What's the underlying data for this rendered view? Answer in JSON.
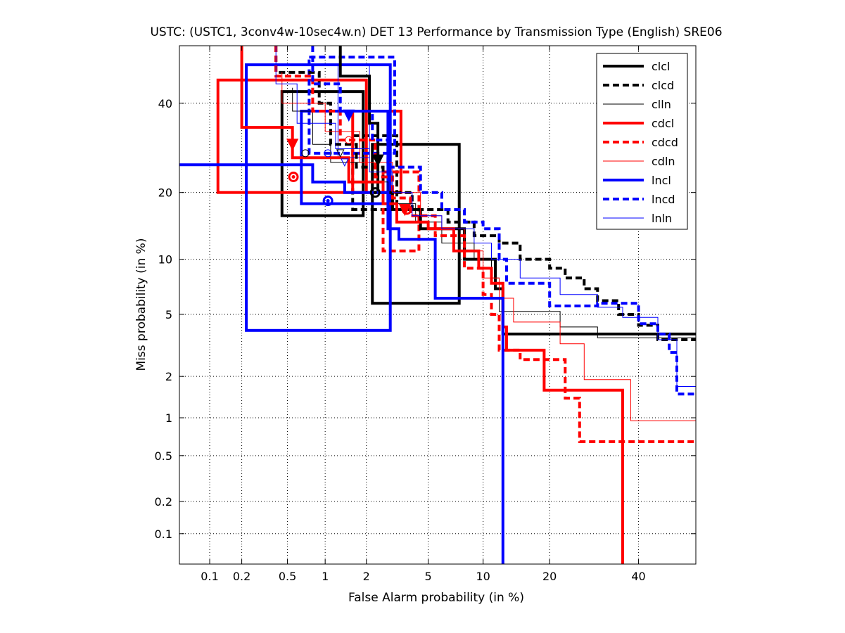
{
  "chart_data": {
    "type": "line",
    "title": "USTC: (USTC1, 3conv4w-10sec4w.n) DET 13 Performance by Transmission Type (English) SRE06",
    "xlabel": "False Alarm probability (in %)",
    "ylabel": "Miss probability (in %)",
    "xscale": "probit",
    "yscale": "probit",
    "xlim": [
      0.05,
      55
    ],
    "ylim": [
      0.05,
      55
    ],
    "xticks": [
      0.1,
      0.2,
      0.5,
      1,
      2,
      5,
      10,
      20,
      40
    ],
    "xtick_labels": [
      "0.1",
      "0.2",
      "0.5",
      "1",
      "2",
      "5",
      "10",
      "20",
      "40"
    ],
    "yticks": [
      0.1,
      0.2,
      0.5,
      1,
      2,
      5,
      10,
      20,
      40
    ],
    "ytick_labels": [
      "0.1",
      "0.2",
      "0.5",
      "1",
      "2",
      "5",
      "10",
      "20",
      "40"
    ],
    "grid": true,
    "legend_position": "top-right",
    "series": [
      {
        "name": "clcl",
        "color": "#000000",
        "style": "solid",
        "weight": "thick",
        "points": [
          [
            1.3,
            55
          ],
          [
            1.3,
            47
          ],
          [
            2.1,
            47
          ],
          [
            2.1,
            35
          ],
          [
            2.4,
            35
          ],
          [
            2.4,
            20
          ],
          [
            3.0,
            20
          ],
          [
            3.0,
            17
          ],
          [
            4.5,
            17
          ],
          [
            4.5,
            14
          ],
          [
            8.0,
            14
          ],
          [
            8.0,
            10
          ],
          [
            11.5,
            10
          ],
          [
            11.5,
            7
          ],
          [
            12.5,
            7
          ],
          [
            12.5,
            3.8
          ],
          [
            55,
            3.8
          ]
        ],
        "det_point": [
          2.3,
          20
        ],
        "min_dcf_point": [
          2.4,
          26.5
        ],
        "boxes": [
          [
            0.45,
            1.9,
            16,
            43
          ],
          [
            2.2,
            7.5,
            5.8,
            30
          ]
        ]
      },
      {
        "name": "clcd",
        "color": "#000000",
        "style": "dashed",
        "weight": "thick",
        "points": [
          [
            0.4,
            55
          ],
          [
            0.4,
            48
          ],
          [
            0.9,
            48
          ],
          [
            0.9,
            40
          ],
          [
            1.1,
            40
          ],
          [
            1.1,
            30
          ],
          [
            1.7,
            30
          ],
          [
            1.7,
            25
          ],
          [
            2.6,
            25
          ],
          [
            2.6,
            20
          ],
          [
            4.0,
            20
          ],
          [
            4.0,
            17
          ],
          [
            6.5,
            17
          ],
          [
            6.5,
            15
          ],
          [
            9.0,
            15
          ],
          [
            9.0,
            13
          ],
          [
            12,
            13
          ],
          [
            12,
            12
          ],
          [
            15,
            12
          ],
          [
            15,
            10
          ],
          [
            20,
            10
          ],
          [
            20,
            9
          ],
          [
            23,
            9
          ],
          [
            23,
            8
          ],
          [
            27,
            8
          ],
          [
            27,
            7
          ],
          [
            30,
            7
          ],
          [
            30,
            6
          ],
          [
            35,
            6
          ],
          [
            35,
            5
          ],
          [
            40,
            5
          ],
          [
            40,
            4.3
          ],
          [
            45,
            4.3
          ],
          [
            45,
            3.5
          ],
          [
            55,
            3.5
          ]
        ],
        "det_point": null,
        "min_dcf_point": null,
        "boxes": [
          [
            1.6,
            3.2,
            17,
            32
          ]
        ]
      },
      {
        "name": "clln",
        "color": "#000000",
        "style": "solid",
        "weight": "thin",
        "points": [
          [
            0.55,
            44
          ],
          [
            0.55,
            38
          ],
          [
            0.8,
            38
          ],
          [
            0.8,
            30
          ],
          [
            1.1,
            30
          ],
          [
            1.1,
            26
          ],
          [
            1.9,
            26
          ],
          [
            1.9,
            22
          ],
          [
            2.8,
            22
          ],
          [
            2.8,
            18
          ],
          [
            4.2,
            18
          ],
          [
            4.2,
            15
          ],
          [
            6.0,
            15
          ],
          [
            6.0,
            12
          ],
          [
            9.0,
            12
          ],
          [
            9.0,
            10
          ],
          [
            11,
            10
          ],
          [
            11,
            8
          ],
          [
            12,
            8
          ],
          [
            12,
            5.2
          ],
          [
            22,
            5.2
          ],
          [
            22,
            4.2
          ],
          [
            30,
            4.2
          ],
          [
            30,
            3.6
          ],
          [
            55,
            3.6
          ]
        ],
        "det_point": [
          0.7,
          28
        ],
        "min_dcf_point": [
          1.3,
          28
        ],
        "boxes": []
      },
      {
        "name": "cdcl",
        "color": "#ff0000",
        "style": "solid",
        "weight": "thick",
        "points": [
          [
            0.2,
            55
          ],
          [
            0.2,
            34
          ],
          [
            0.55,
            34
          ],
          [
            0.55,
            27
          ],
          [
            1.5,
            27
          ],
          [
            1.5,
            22
          ],
          [
            2.6,
            22
          ],
          [
            2.6,
            18
          ],
          [
            3.2,
            18
          ],
          [
            3.2,
            15
          ],
          [
            5.0,
            15
          ],
          [
            5.0,
            14
          ],
          [
            7.0,
            14
          ],
          [
            7.0,
            11
          ],
          [
            9.5,
            11
          ],
          [
            9.5,
            9
          ],
          [
            11,
            9
          ],
          [
            11,
            7.5
          ],
          [
            12.5,
            7.5
          ],
          [
            12.5,
            4.2
          ],
          [
            13,
            4.2
          ],
          [
            13,
            3
          ],
          [
            19,
            3
          ],
          [
            19,
            1.6
          ],
          [
            36,
            1.6
          ],
          [
            36,
            0.05
          ]
        ],
        "det_point": [
          0.56,
          23
        ],
        "min_dcf_point": [
          0.55,
          30
        ],
        "boxes": [
          [
            0.12,
            2.0,
            20,
            46
          ],
          [
            1.6,
            3.4,
            20,
            38
          ]
        ]
      },
      {
        "name": "cdcd",
        "color": "#ff0000",
        "style": "dashed",
        "weight": "thick",
        "points": [
          [
            0.4,
            55
          ],
          [
            0.4,
            47
          ],
          [
            0.8,
            47
          ],
          [
            0.8,
            38
          ],
          [
            1.3,
            38
          ],
          [
            1.3,
            31
          ],
          [
            2.3,
            31
          ],
          [
            2.3,
            23
          ],
          [
            3.0,
            23
          ],
          [
            3.0,
            19
          ],
          [
            3.9,
            19
          ],
          [
            3.9,
            16
          ],
          [
            5.5,
            16
          ],
          [
            5.5,
            13
          ],
          [
            8.0,
            13
          ],
          [
            8.0,
            9
          ],
          [
            10,
            9
          ],
          [
            10,
            6.5
          ],
          [
            11,
            6.5
          ],
          [
            11,
            5
          ],
          [
            12,
            5
          ],
          [
            12,
            3
          ],
          [
            15,
            3
          ],
          [
            15,
            2.6
          ],
          [
            23,
            2.6
          ],
          [
            23,
            1.4
          ],
          [
            26,
            1.4
          ],
          [
            26,
            0.65
          ],
          [
            55,
            0.65
          ]
        ],
        "det_point": [
          3.7,
          17
        ],
        "min_dcf_point": [
          3.6,
          17
        ],
        "boxes": [
          [
            2.6,
            4.4,
            11,
            24
          ]
        ]
      },
      {
        "name": "cdln",
        "color": "#ff0000",
        "style": "solid",
        "weight": "thin",
        "points": [
          [
            0.45,
            48
          ],
          [
            0.45,
            40
          ],
          [
            1.0,
            40
          ],
          [
            1.0,
            33
          ],
          [
            1.8,
            33
          ],
          [
            1.8,
            26
          ],
          [
            3.0,
            26
          ],
          [
            3.0,
            20
          ],
          [
            4.5,
            20
          ],
          [
            4.5,
            16
          ],
          [
            6.0,
            16
          ],
          [
            6.0,
            14
          ],
          [
            8.0,
            14
          ],
          [
            8.0,
            11
          ],
          [
            10,
            11
          ],
          [
            10,
            8
          ],
          [
            12,
            8
          ],
          [
            12,
            6.2
          ],
          [
            14,
            6.2
          ],
          [
            14,
            4.5
          ],
          [
            22,
            4.5
          ],
          [
            22,
            3.3
          ],
          [
            27,
            3.3
          ],
          [
            27,
            1.9
          ],
          [
            38,
            1.9
          ],
          [
            38,
            0.95
          ],
          [
            55,
            0.95
          ]
        ],
        "det_point": [
          1.5,
          31
        ],
        "min_dcf_point": null,
        "boxes": []
      },
      {
        "name": "lncl",
        "color": "#0000ff",
        "style": "solid",
        "weight": "thick",
        "points": [
          [
            0.05,
            25.5
          ],
          [
            0.8,
            25.5
          ],
          [
            0.8,
            22
          ],
          [
            1.4,
            22
          ],
          [
            1.4,
            20
          ],
          [
            2.8,
            20
          ],
          [
            2.8,
            14
          ],
          [
            3.3,
            14
          ],
          [
            3.3,
            12.5
          ],
          [
            5.5,
            12.5
          ],
          [
            5.5,
            6.2
          ],
          [
            12.5,
            6.2
          ],
          [
            12.5,
            0.05
          ]
        ],
        "det_point": [
          1.05,
          18.5
        ],
        "min_dcf_point": [
          1.5,
          37
        ],
        "boxes": [
          [
            0.22,
            2.9,
            4,
            50
          ],
          [
            0.65,
            2.8,
            18,
            38
          ]
        ]
      },
      {
        "name": "lncd",
        "color": "#0000ff",
        "style": "dashed",
        "weight": "thick",
        "points": [
          [
            0.8,
            55
          ],
          [
            0.8,
            45
          ],
          [
            1.3,
            45
          ],
          [
            1.3,
            38
          ],
          [
            2.2,
            38
          ],
          [
            2.2,
            31
          ],
          [
            2.8,
            31
          ],
          [
            2.8,
            25
          ],
          [
            4.5,
            25
          ],
          [
            4.5,
            20
          ],
          [
            6.0,
            20
          ],
          [
            6.0,
            17
          ],
          [
            8.0,
            17
          ],
          [
            8.0,
            15
          ],
          [
            10,
            15
          ],
          [
            10,
            14
          ],
          [
            12,
            14
          ],
          [
            12,
            10
          ],
          [
            13,
            10
          ],
          [
            13,
            7.5
          ],
          [
            20,
            7.5
          ],
          [
            20,
            5.6
          ],
          [
            30,
            5.6
          ],
          [
            30,
            5.8
          ],
          [
            40,
            5.8
          ],
          [
            40,
            4.4
          ],
          [
            45,
            4.4
          ],
          [
            45,
            3.8
          ],
          [
            48,
            3.8
          ],
          [
            48,
            2.9
          ],
          [
            50,
            2.9
          ],
          [
            50,
            1.5
          ],
          [
            55,
            1.5
          ]
        ],
        "det_point": null,
        "min_dcf_point": null,
        "boxes": [
          [
            0.75,
            3.1,
            28,
            52
          ]
        ]
      },
      {
        "name": "lnln",
        "color": "#0000ff",
        "style": "solid",
        "weight": "thin",
        "points": [
          [
            0.4,
            55
          ],
          [
            0.4,
            45
          ],
          [
            0.6,
            45
          ],
          [
            0.6,
            35
          ],
          [
            1.2,
            35
          ],
          [
            1.2,
            29
          ],
          [
            2.1,
            29
          ],
          [
            2.1,
            24
          ],
          [
            3.0,
            24
          ],
          [
            3.0,
            20
          ],
          [
            4.0,
            20
          ],
          [
            4.0,
            16
          ],
          [
            6.0,
            16
          ],
          [
            6.0,
            14
          ],
          [
            9.0,
            14
          ],
          [
            9.0,
            12
          ],
          [
            11,
            12
          ],
          [
            11,
            10
          ],
          [
            15,
            10
          ],
          [
            15,
            8
          ],
          [
            22,
            8
          ],
          [
            22,
            6.5
          ],
          [
            30,
            6.5
          ],
          [
            30,
            5.5
          ],
          [
            36,
            5.5
          ],
          [
            36,
            4.8
          ],
          [
            45,
            4.8
          ],
          [
            45,
            3.5
          ],
          [
            50,
            3.5
          ],
          [
            50,
            1.7
          ],
          [
            55,
            1.7
          ]
        ],
        "det_point": [
          1.05,
          28
        ],
        "min_dcf_point": [
          1.4,
          26
        ],
        "boxes": [
          [
            1.25,
            2.1,
            27,
            50
          ]
        ]
      }
    ]
  }
}
